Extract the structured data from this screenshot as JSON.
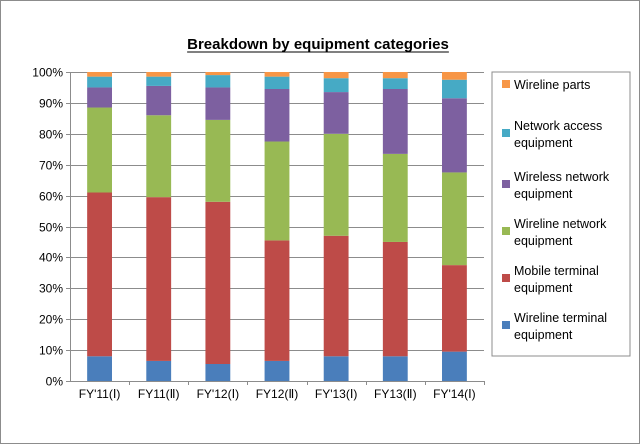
{
  "chart_data": {
    "type": "bar",
    "stacked": true,
    "title": "Breakdown by equipment categories",
    "categories": [
      "FY'11(Ⅰ)",
      "FY11(Ⅱ)",
      "FY'12(Ⅰ)",
      "FY12(Ⅱ)",
      "FY'13(Ⅰ)",
      "FY13(Ⅱ)",
      "FY'14(Ⅰ)"
    ],
    "ylim": [
      0,
      100
    ],
    "yticks": [
      "0%",
      "10%",
      "20%",
      "30%",
      "40%",
      "50%",
      "60%",
      "70%",
      "80%",
      "90%",
      "100%"
    ],
    "grid": true,
    "legend_position": "right",
    "series": [
      {
        "name": "Wireline terminal equipment",
        "color": "#4a7ebb",
        "values": [
          8,
          6.5,
          5.5,
          6.5,
          8,
          8,
          9.5
        ]
      },
      {
        "name": "Mobile terminal equipment",
        "color": "#be4b48",
        "values": [
          53,
          53,
          52.5,
          39,
          39,
          37,
          28
        ]
      },
      {
        "name": "Wireline network equipment",
        "color": "#98b954",
        "values": [
          27.5,
          26.5,
          26.5,
          32,
          33,
          28.5,
          30
        ]
      },
      {
        "name": "Wireless network equipment",
        "color": "#7d60a0",
        "values": [
          6.5,
          9.5,
          10.5,
          17,
          13.5,
          21,
          24
        ]
      },
      {
        "name": "Network access equipment",
        "color": "#46aac5",
        "values": [
          3.5,
          3,
          4,
          4,
          4.5,
          3.5,
          6
        ]
      },
      {
        "name": "Wireline parts",
        "color": "#f79646",
        "values": [
          1.5,
          1.5,
          1,
          1.5,
          2,
          2,
          2.5
        ]
      }
    ],
    "legend": [
      {
        "lines": [
          "Wireline parts"
        ],
        "color": "#f79646"
      },
      {
        "lines": [
          "Network access",
          "equipment"
        ],
        "color": "#46aac5"
      },
      {
        "lines": [
          "Wireless network",
          "equipment"
        ],
        "color": "#7d60a0"
      },
      {
        "lines": [
          "Wireline network",
          "equipment"
        ],
        "color": "#98b954"
      },
      {
        "lines": [
          "Mobile terminal",
          "equipment"
        ],
        "color": "#be4b48"
      },
      {
        "lines": [
          "Wireline terminal",
          "equipment"
        ],
        "color": "#4a7ebb"
      }
    ]
  }
}
